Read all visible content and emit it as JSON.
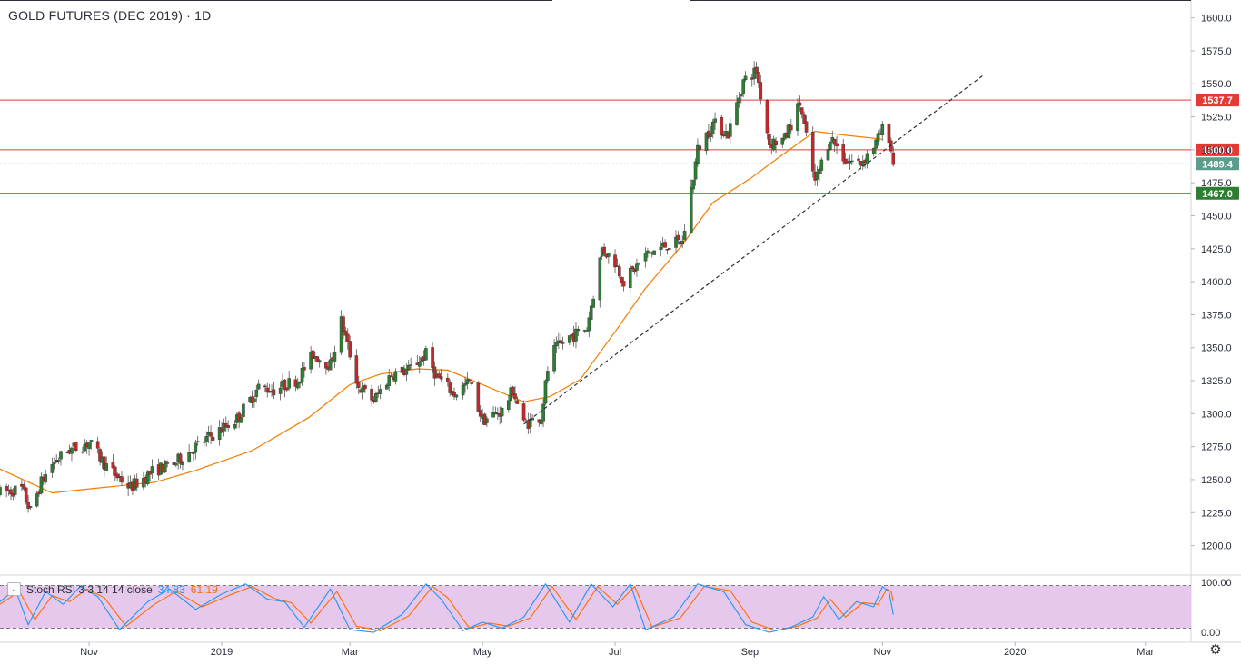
{
  "title": "GOLD FUTURES (DEC 2019) · 1D",
  "colors": {
    "up": "#26a69a",
    "down": "#ef5350",
    "up_body": "#2e7d32",
    "down_body": "#c62828",
    "ma": "#f57c00",
    "resistance": "#e53935",
    "support": "#2e7d32",
    "current_price": "#5d9c8c",
    "trendline": "#2a2e39",
    "stoch_k": "#2196f3",
    "stoch_d": "#ff6d00",
    "stoch_band": "#e1bee7"
  },
  "indicator": {
    "label": "Stoch RSI 3 3 14 14 close",
    "k_value": "34.83",
    "d_value": "61.19",
    "y_labels": [
      "100.00",
      "0.00"
    ]
  },
  "chart_data": {
    "type": "candlestick",
    "title": "GOLD FUTURES (DEC 2019) · 1D",
    "y_axis_labels": [
      "1600.0",
      "1575.0",
      "1550.0",
      "1525.0",
      "1500.0",
      "1475.0",
      "1450.0",
      "1425.0",
      "1400.0",
      "1375.0",
      "1350.0",
      "1325.0",
      "1300.0",
      "1275.0",
      "1250.0",
      "1225.0",
      "1200.0"
    ],
    "ylim": [
      1188,
      1608
    ],
    "x_axis_labels": [
      "Nov",
      "2019",
      "Mar",
      "May",
      "Jul",
      "Sep",
      "Nov",
      "2020",
      "Mar"
    ],
    "x_tick_dates": [
      "2018-11-01",
      "2019-01-01",
      "2019-03-01",
      "2019-05-01",
      "2019-07-01",
      "2019-09-01",
      "2019-11-01",
      "2020-01-01",
      "2020-03-01"
    ],
    "date_range": [
      "2018-09-21",
      "2020-03-22"
    ],
    "horizontal_levels": [
      {
        "price": 1537.7,
        "label": "1537.7",
        "kind": "resistance"
      },
      {
        "price": 1500.0,
        "label": "1500.0",
        "kind": "resistance"
      },
      {
        "price": 1489.4,
        "label": "1489.4",
        "kind": "current"
      },
      {
        "price": 1467.0,
        "label": "1467.0",
        "kind": "support"
      }
    ],
    "trendline": {
      "from": {
        "date": "2019-05-20",
        "price": 1292
      },
      "to": {
        "date": "2019-12-17",
        "price": 1556
      }
    },
    "moving_average_keypoints": [
      {
        "date": "2018-09-21",
        "price": 1258
      },
      {
        "date": "2018-10-15",
        "price": 1240
      },
      {
        "date": "2018-11-01",
        "price": 1243
      },
      {
        "date": "2018-12-01",
        "price": 1248
      },
      {
        "date": "2018-12-20",
        "price": 1257
      },
      {
        "date": "2019-01-15",
        "price": 1272
      },
      {
        "date": "2019-02-10",
        "price": 1297
      },
      {
        "date": "2019-03-01",
        "price": 1322
      },
      {
        "date": "2019-03-15",
        "price": 1330
      },
      {
        "date": "2019-04-01",
        "price": 1334
      },
      {
        "date": "2019-04-15",
        "price": 1333
      },
      {
        "date": "2019-05-01",
        "price": 1322
      },
      {
        "date": "2019-05-20",
        "price": 1309
      },
      {
        "date": "2019-06-01",
        "price": 1313
      },
      {
        "date": "2019-06-15",
        "price": 1326
      },
      {
        "date": "2019-07-01",
        "price": 1362
      },
      {
        "date": "2019-07-15",
        "price": 1395
      },
      {
        "date": "2019-08-01",
        "price": 1428
      },
      {
        "date": "2019-08-15",
        "price": 1460
      },
      {
        "date": "2019-09-01",
        "price": 1478
      },
      {
        "date": "2019-09-15",
        "price": 1495
      },
      {
        "date": "2019-10-01",
        "price": 1514
      },
      {
        "date": "2019-10-15",
        "price": 1511
      },
      {
        "date": "2019-11-01",
        "price": 1508
      }
    ],
    "price_path": [
      {
        "date": "2018-09-21",
        "price": 1240
      },
      {
        "date": "2018-10-01",
        "price": 1243
      },
      {
        "date": "2018-10-05",
        "price": 1226
      },
      {
        "date": "2018-10-10",
        "price": 1248
      },
      {
        "date": "2018-10-15",
        "price": 1262
      },
      {
        "date": "2018-10-22",
        "price": 1272
      },
      {
        "date": "2018-11-01",
        "price": 1278
      },
      {
        "date": "2018-11-10",
        "price": 1258
      },
      {
        "date": "2018-11-20",
        "price": 1244
      },
      {
        "date": "2018-12-01",
        "price": 1257
      },
      {
        "date": "2018-12-10",
        "price": 1262
      },
      {
        "date": "2018-12-20",
        "price": 1275
      },
      {
        "date": "2018-12-28",
        "price": 1284
      },
      {
        "date": "2019-01-08",
        "price": 1296
      },
      {
        "date": "2019-01-18",
        "price": 1320
      },
      {
        "date": "2019-01-25",
        "price": 1318
      },
      {
        "date": "2019-02-05",
        "price": 1326
      },
      {
        "date": "2019-02-12",
        "price": 1345
      },
      {
        "date": "2019-02-20",
        "price": 1337
      },
      {
        "date": "2019-02-25",
        "price": 1370
      },
      {
        "date": "2019-03-05",
        "price": 1320
      },
      {
        "date": "2019-03-12",
        "price": 1310
      },
      {
        "date": "2019-03-20",
        "price": 1330
      },
      {
        "date": "2019-03-28",
        "price": 1333
      },
      {
        "date": "2019-04-05",
        "price": 1345
      },
      {
        "date": "2019-04-10",
        "price": 1328
      },
      {
        "date": "2019-04-18",
        "price": 1315
      },
      {
        "date": "2019-04-25",
        "price": 1324
      },
      {
        "date": "2019-05-01",
        "price": 1295
      },
      {
        "date": "2019-05-10",
        "price": 1302
      },
      {
        "date": "2019-05-15",
        "price": 1318
      },
      {
        "date": "2019-05-20",
        "price": 1292
      },
      {
        "date": "2019-05-28",
        "price": 1298
      },
      {
        "date": "2019-06-01",
        "price": 1345
      },
      {
        "date": "2019-06-10",
        "price": 1358
      },
      {
        "date": "2019-06-18",
        "price": 1365
      },
      {
        "date": "2019-06-25",
        "price": 1425
      },
      {
        "date": "2019-07-01",
        "price": 1415
      },
      {
        "date": "2019-07-05",
        "price": 1400
      },
      {
        "date": "2019-07-15",
        "price": 1420
      },
      {
        "date": "2019-07-25",
        "price": 1428
      },
      {
        "date": "2019-08-01",
        "price": 1430
      },
      {
        "date": "2019-08-08",
        "price": 1500
      },
      {
        "date": "2019-08-15",
        "price": 1520
      },
      {
        "date": "2019-08-22",
        "price": 1512
      },
      {
        "date": "2019-08-29",
        "price": 1552
      },
      {
        "date": "2019-09-04",
        "price": 1560
      },
      {
        "date": "2019-09-10",
        "price": 1505
      },
      {
        "date": "2019-09-17",
        "price": 1508
      },
      {
        "date": "2019-09-24",
        "price": 1535
      },
      {
        "date": "2019-10-01",
        "price": 1475
      },
      {
        "date": "2019-10-08",
        "price": 1510
      },
      {
        "date": "2019-10-15",
        "price": 1492
      },
      {
        "date": "2019-10-22",
        "price": 1490
      },
      {
        "date": "2019-10-29",
        "price": 1505
      },
      {
        "date": "2019-11-01",
        "price": 1515
      },
      {
        "date": "2019-11-04",
        "price": 1510
      },
      {
        "date": "2019-11-06",
        "price": 1489.4
      }
    ],
    "stoch_ylim": [
      0,
      100
    ],
    "stoch_bands": [
      80,
      20
    ],
    "stoch_rsi_k_keypoints": [
      {
        "date": "2018-09-21",
        "value": 60
      },
      {
        "date": "2018-09-28",
        "value": 85
      },
      {
        "date": "2018-10-04",
        "value": 15
      },
      {
        "date": "2018-10-12",
        "value": 80
      },
      {
        "date": "2018-10-20",
        "value": 55
      },
      {
        "date": "2018-10-28",
        "value": 90
      },
      {
        "date": "2018-11-05",
        "value": 70
      },
      {
        "date": "2018-11-15",
        "value": 5
      },
      {
        "date": "2018-11-28",
        "value": 60
      },
      {
        "date": "2018-12-08",
        "value": 85
      },
      {
        "date": "2018-12-20",
        "value": 45
      },
      {
        "date": "2019-01-01",
        "value": 75
      },
      {
        "date": "2019-01-12",
        "value": 95
      },
      {
        "date": "2019-01-22",
        "value": 65
      },
      {
        "date": "2019-01-30",
        "value": 60
      },
      {
        "date": "2019-02-08",
        "value": 10
      },
      {
        "date": "2019-02-20",
        "value": 85
      },
      {
        "date": "2019-03-01",
        "value": 5
      },
      {
        "date": "2019-03-12",
        "value": 0
      },
      {
        "date": "2019-03-25",
        "value": 35
      },
      {
        "date": "2019-04-05",
        "value": 95
      },
      {
        "date": "2019-04-12",
        "value": 65
      },
      {
        "date": "2019-04-22",
        "value": 3
      },
      {
        "date": "2019-05-01",
        "value": 20
      },
      {
        "date": "2019-05-10",
        "value": 8
      },
      {
        "date": "2019-05-20",
        "value": 30
      },
      {
        "date": "2019-05-30",
        "value": 95
      },
      {
        "date": "2019-06-10",
        "value": 20
      },
      {
        "date": "2019-06-20",
        "value": 95
      },
      {
        "date": "2019-06-30",
        "value": 50
      },
      {
        "date": "2019-07-08",
        "value": 95
      },
      {
        "date": "2019-07-15",
        "value": 5
      },
      {
        "date": "2019-07-28",
        "value": 30
      },
      {
        "date": "2019-08-08",
        "value": 95
      },
      {
        "date": "2019-08-20",
        "value": 80
      },
      {
        "date": "2019-08-30",
        "value": 15
      },
      {
        "date": "2019-09-10",
        "value": 0
      },
      {
        "date": "2019-09-20",
        "value": 10
      },
      {
        "date": "2019-09-30",
        "value": 30
      },
      {
        "date": "2019-10-05",
        "value": 70
      },
      {
        "date": "2019-10-12",
        "value": 25
      },
      {
        "date": "2019-10-20",
        "value": 60
      },
      {
        "date": "2019-10-28",
        "value": 50
      },
      {
        "date": "2019-11-01",
        "value": 90
      },
      {
        "date": "2019-11-04",
        "value": 80
      },
      {
        "date": "2019-11-06",
        "value": 34.83
      }
    ],
    "stoch_rsi_d_keypoints": [
      {
        "date": "2018-09-21",
        "value": 55
      },
      {
        "date": "2018-09-30",
        "value": 80
      },
      {
        "date": "2018-10-07",
        "value": 25
      },
      {
        "date": "2018-10-15",
        "value": 72
      },
      {
        "date": "2018-10-23",
        "value": 60
      },
      {
        "date": "2018-10-31",
        "value": 85
      },
      {
        "date": "2018-11-08",
        "value": 68
      },
      {
        "date": "2018-11-18",
        "value": 12
      },
      {
        "date": "2018-12-01",
        "value": 55
      },
      {
        "date": "2018-12-11",
        "value": 80
      },
      {
        "date": "2018-12-23",
        "value": 50
      },
      {
        "date": "2019-01-04",
        "value": 72
      },
      {
        "date": "2019-01-15",
        "value": 90
      },
      {
        "date": "2019-01-25",
        "value": 67
      },
      {
        "date": "2019-02-02",
        "value": 58
      },
      {
        "date": "2019-02-11",
        "value": 18
      },
      {
        "date": "2019-02-23",
        "value": 80
      },
      {
        "date": "2019-03-04",
        "value": 12
      },
      {
        "date": "2019-03-15",
        "value": 3
      },
      {
        "date": "2019-03-28",
        "value": 32
      },
      {
        "date": "2019-04-08",
        "value": 90
      },
      {
        "date": "2019-04-15",
        "value": 68
      },
      {
        "date": "2019-04-25",
        "value": 8
      },
      {
        "date": "2019-05-04",
        "value": 18
      },
      {
        "date": "2019-05-13",
        "value": 12
      },
      {
        "date": "2019-05-23",
        "value": 28
      },
      {
        "date": "2019-06-02",
        "value": 90
      },
      {
        "date": "2019-06-13",
        "value": 25
      },
      {
        "date": "2019-06-23",
        "value": 90
      },
      {
        "date": "2019-07-02",
        "value": 55
      },
      {
        "date": "2019-07-10",
        "value": 90
      },
      {
        "date": "2019-07-18",
        "value": 10
      },
      {
        "date": "2019-07-31",
        "value": 28
      },
      {
        "date": "2019-08-11",
        "value": 90
      },
      {
        "date": "2019-08-23",
        "value": 82
      },
      {
        "date": "2019-09-02",
        "value": 20
      },
      {
        "date": "2019-09-13",
        "value": 3
      },
      {
        "date": "2019-09-23",
        "value": 12
      },
      {
        "date": "2019-10-02",
        "value": 28
      },
      {
        "date": "2019-10-08",
        "value": 65
      },
      {
        "date": "2019-10-15",
        "value": 30
      },
      {
        "date": "2019-10-23",
        "value": 58
      },
      {
        "date": "2019-10-30",
        "value": 55
      },
      {
        "date": "2019-11-03",
        "value": 85
      },
      {
        "date": "2019-11-05",
        "value": 80
      },
      {
        "date": "2019-11-06",
        "value": 61.19
      }
    ]
  }
}
